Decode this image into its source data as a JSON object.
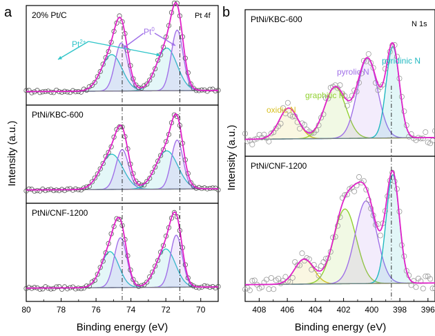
{
  "figure": {
    "panel_a": {
      "letter": "a",
      "ylabel": "Intensity (a.u.)",
      "xlabel": "Binding energy (eV)",
      "element_label": "Pt 4f",
      "annotation_pt2": "Pt",
      "annotation_pt2_sup": "2+",
      "annotation_pt0": "Pt",
      "annotation_pt0_sup": "0"
    },
    "panel_b": {
      "letter": "b",
      "ylabel": "Intensity (a.u.)",
      "xlabel": "Binding energy (eV)",
      "element_label": "N 1s",
      "label_oxidic": "oxidic N",
      "label_graphitic": "graphitic N",
      "label_pyrolic": "pyrolic N",
      "label_pyridinic": "pyridinic N"
    }
  },
  "chart_data": [
    {
      "type": "line",
      "title": "Pt 4f",
      "xlabel": "Binding energy (eV)",
      "ylabel": "Intensity (a.u.)",
      "xlim": [
        80,
        69
      ],
      "x_ticks": [
        80,
        78,
        76,
        74,
        72,
        70
      ],
      "x_reversed": true,
      "reference_lines": [
        74.5,
        71.2
      ],
      "colors": {
        "envelope": "#e020c8",
        "pt2": "#2ec4c8",
        "pt0": "#a070e8",
        "background": "#7a7a7a",
        "points": "#555555"
      },
      "subplots": [
        {
          "sample": "20% Pt/C",
          "peaks": [
            {
              "component": "Pt2+",
              "center": 75.1,
              "fwhm": 1.4,
              "height": 0.47
            },
            {
              "component": "Pt0",
              "center": 74.55,
              "fwhm": 0.85,
              "height": 0.62
            },
            {
              "component": "Pt2+",
              "center": 71.95,
              "fwhm": 1.4,
              "height": 0.55
            },
            {
              "component": "Pt0",
              "center": 71.35,
              "fwhm": 0.8,
              "height": 0.78
            }
          ],
          "max_intensity": 1.0
        },
        {
          "sample": "PtNi/KBC-600",
          "peaks": [
            {
              "component": "Pt2+",
              "center": 75.1,
              "fwhm": 1.5,
              "height": 0.46
            },
            {
              "component": "Pt0",
              "center": 74.5,
              "fwhm": 0.85,
              "height": 0.52
            },
            {
              "component": "Pt2+",
              "center": 71.95,
              "fwhm": 1.5,
              "height": 0.5
            },
            {
              "component": "Pt0",
              "center": 71.35,
              "fwhm": 0.8,
              "height": 0.64
            }
          ],
          "max_intensity": 1.0
        },
        {
          "sample": "PtNi/CNF-1200",
          "peaks": [
            {
              "component": "Pt2+",
              "center": 75.2,
              "fwhm": 1.2,
              "height": 0.47
            },
            {
              "component": "Pt0",
              "center": 74.6,
              "fwhm": 0.85,
              "height": 0.65
            },
            {
              "component": "Pt2+",
              "center": 72.0,
              "fwhm": 1.3,
              "height": 0.5
            },
            {
              "component": "Pt0",
              "center": 71.4,
              "fwhm": 0.8,
              "height": 0.68
            }
          ],
          "max_intensity": 1.0
        }
      ]
    },
    {
      "type": "line",
      "title": "N 1s",
      "xlabel": "Binding energy (eV)",
      "ylabel": "Intensity (a.u.)",
      "xlim": [
        409,
        395.5
      ],
      "x_ticks": [
        408,
        406,
        404,
        402,
        400,
        398,
        396
      ],
      "x_reversed": true,
      "reference_lines": [
        398.6
      ],
      "colors": {
        "envelope": "#e020c8",
        "oxidic": "#d8c020",
        "graphitic": "#90d030",
        "pyrolic": "#a070e8",
        "pyridinic": "#20b8c0",
        "background": "#7a7a7a",
        "points": "#999999"
      },
      "subplots": [
        {
          "sample": "PtNi/KBC-600",
          "peaks": [
            {
              "component": "oxidic N",
              "center": 405.9,
              "fwhm": 1.6,
              "height": 0.27
            },
            {
              "component": "graphitic N",
              "center": 402.6,
              "fwhm": 1.8,
              "height": 0.45
            },
            {
              "component": "pyrolic N",
              "center": 400.3,
              "fwhm": 1.7,
              "height": 0.7
            },
            {
              "component": "pyridinic N",
              "center": 398.5,
              "fwhm": 1.1,
              "height": 0.8
            }
          ],
          "max_intensity": 1.0
        },
        {
          "sample": "PtNi/CNF-1200",
          "peaks": [
            {
              "component": "oxidic N",
              "center": 404.8,
              "fwhm": 1.6,
              "height": 0.22
            },
            {
              "component": "graphitic N",
              "center": 401.9,
              "fwhm": 1.9,
              "height": 0.66
            },
            {
              "component": "pyrolic N",
              "center": 400.4,
              "fwhm": 1.8,
              "height": 0.73
            },
            {
              "component": "pyridinic N",
              "center": 398.5,
              "fwhm": 1.1,
              "height": 0.96
            }
          ],
          "max_intensity": 1.0
        }
      ]
    }
  ]
}
